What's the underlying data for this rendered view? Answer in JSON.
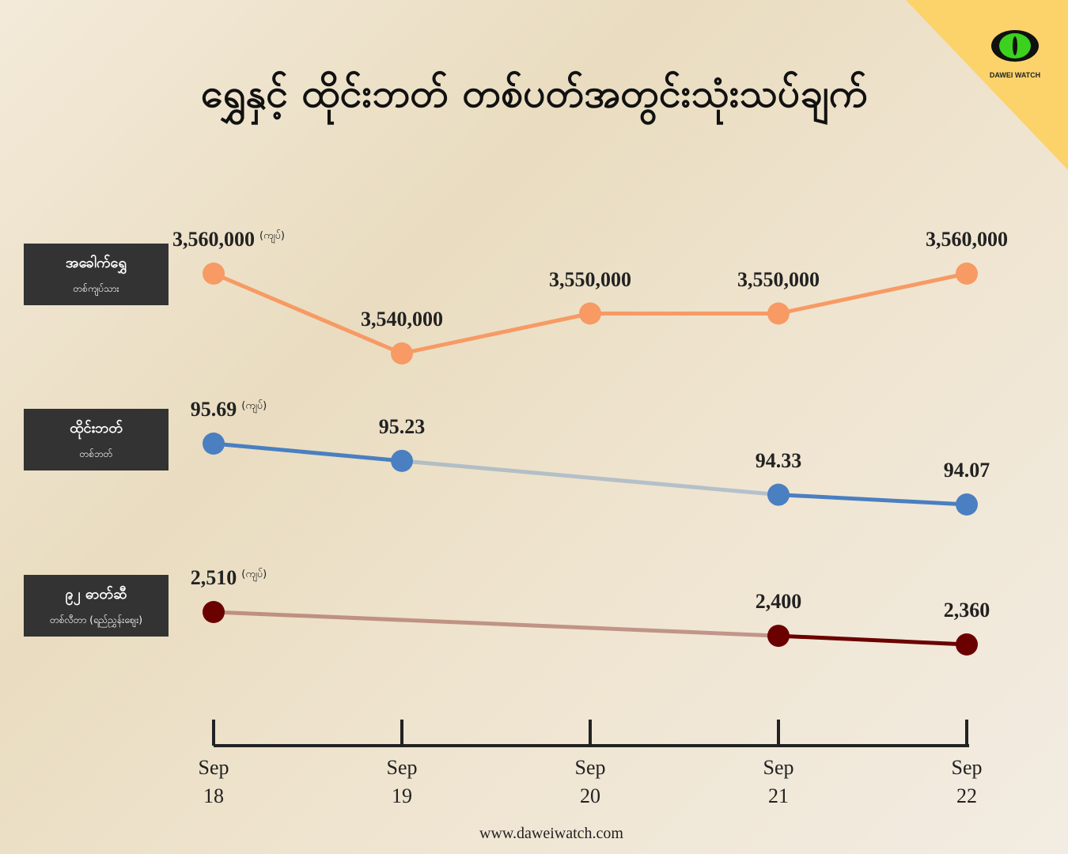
{
  "chart_data": {
    "type": "line",
    "title": "ရွှေနှင့် ထိုင်းဘတ် တစ်ပတ်အတွင်းသုံးသပ်ချက်",
    "categories": [
      "Sep 18",
      "Sep 19",
      "Sep 20",
      "Sep 21",
      "Sep 22"
    ],
    "series": [
      {
        "name": "အခေါက်ရွှေ",
        "subtitle": "တစ်ကျပ်သား",
        "unit": "(ကျပ်)",
        "color": "#f79a64",
        "values": [
          3560000,
          3540000,
          3550000,
          3550000,
          3560000
        ],
        "value_labels": [
          "3,560,000",
          "3,540,000",
          "3,550,000",
          "3,550,000",
          "3,560,000"
        ]
      },
      {
        "name": "ထိုင်းဘတ်",
        "subtitle": "တစ်ဘတ်",
        "unit": "(ကျပ်)",
        "color": "#4a7fc1",
        "values": [
          95.69,
          95.23,
          null,
          94.33,
          94.07
        ]
      },
      {
        "name": "၉၂ ဓာတ်ဆီ",
        "subtitle": "တစ်လီတာ (ရည်ညွှန်းဈေး)",
        "unit": "(ကျပ်)",
        "color": "#6b0000",
        "values": [
          2510,
          null,
          null,
          2400,
          2360
        ],
        "value_labels": [
          "2,510",
          null,
          null,
          "2,400",
          "2,360"
        ]
      }
    ]
  },
  "logo": "DAWEI WATCH",
  "footer": "www.daweiwatch.com"
}
